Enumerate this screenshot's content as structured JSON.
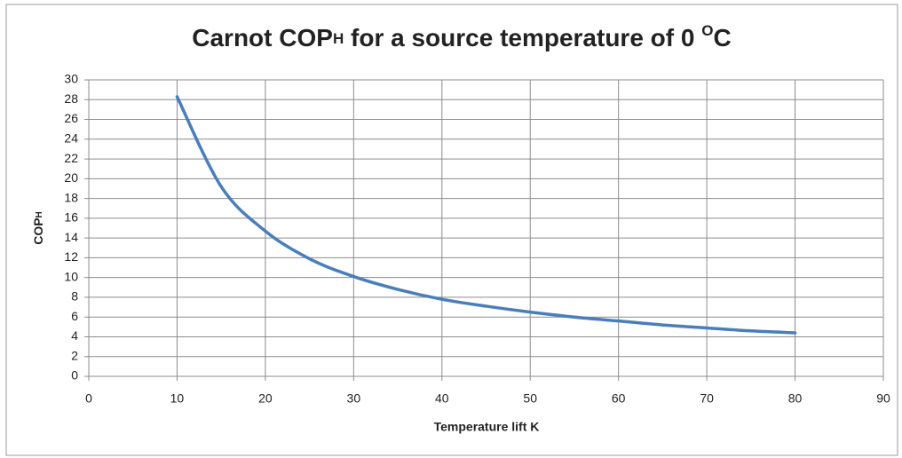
{
  "chart_data": {
    "type": "line",
    "title": {
      "main": "Carnot COP",
      "sub": "H",
      "middle": " for a source temperature of 0 ",
      "sup": "O",
      "end": "C"
    },
    "xlabel": "Temperature lift  K",
    "ylabel": {
      "main": "COP",
      "sub": "H"
    },
    "x": [
      10,
      15,
      20,
      25,
      30,
      35,
      40,
      45,
      50,
      55,
      60,
      65,
      70,
      75,
      80
    ],
    "series": [
      {
        "color": "#4a7ebb",
        "values": [
          28.3,
          19.2,
          14.7,
          11.9,
          10.1,
          8.8,
          7.8,
          7.1,
          6.5,
          6.0,
          5.6,
          5.2,
          4.9,
          4.6,
          4.4
        ]
      }
    ],
    "xlim": [
      0,
      90
    ],
    "xticks": [
      0,
      10,
      20,
      30,
      40,
      50,
      60,
      70,
      80,
      90
    ],
    "ylim": [
      0,
      30
    ],
    "yticks": [
      0,
      2,
      4,
      6,
      8,
      10,
      12,
      14,
      16,
      18,
      20,
      22,
      24,
      26,
      28,
      30
    ],
    "grid": true
  }
}
